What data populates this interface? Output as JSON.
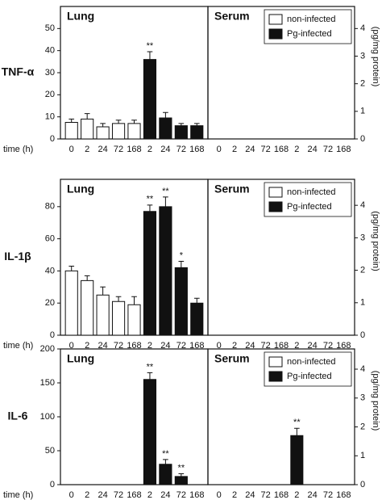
{
  "chart_data": [
    {
      "type": "bar",
      "title": "Lung",
      "row_label": "TNF-α",
      "x_label": "time (h)",
      "categories": [
        "0",
        "2",
        "24",
        "72",
        "168",
        "2",
        "24",
        "72",
        "168"
      ],
      "ylim": [
        0,
        60
      ],
      "yticks": [
        0,
        10,
        20,
        30,
        40,
        50
      ],
      "y_axis": "left",
      "series": [
        {
          "color": "#ffffff",
          "values": [
            7.5,
            9,
            5.5,
            7,
            7,
            null,
            null,
            null,
            null
          ],
          "errors": [
            1.5,
            2.5,
            1.5,
            1.5,
            1.5,
            null,
            null,
            null,
            null
          ],
          "significance": [
            null,
            null,
            null,
            null,
            null,
            null,
            null,
            null,
            null
          ]
        },
        {
          "color": "#111111",
          "values": [
            null,
            null,
            null,
            null,
            null,
            36,
            9.5,
            6,
            6
          ],
          "errors": [
            null,
            null,
            null,
            null,
            null,
            3.5,
            2.5,
            1,
            1
          ],
          "significance": [
            null,
            null,
            null,
            null,
            null,
            "**",
            null,
            null,
            null
          ]
        }
      ]
    },
    {
      "type": "bar",
      "title": "Serum",
      "y_label": "(pg/mg protein)",
      "legend": "upper right",
      "categories": [
        "0",
        "2",
        "24",
        "72",
        "168",
        "2",
        "24",
        "72",
        "168"
      ],
      "ylim": [
        0,
        4.8
      ],
      "yticks": [
        0,
        1,
        2,
        3,
        4
      ],
      "y_axis": "right",
      "series": [
        {
          "name": "non-infected",
          "color": "#ffffff",
          "values": [
            0,
            0,
            0,
            0,
            0,
            null,
            null,
            null,
            null
          ],
          "errors": [
            0,
            0,
            0,
            0,
            0,
            null,
            null,
            null,
            null
          ],
          "significance": [
            null,
            null,
            null,
            null,
            null,
            null,
            null,
            null,
            null
          ]
        },
        {
          "name": "Pg-infected",
          "color": "#111111",
          "values": [
            null,
            null,
            null,
            null,
            null,
            0,
            0,
            0,
            0
          ],
          "errors": [
            null,
            null,
            null,
            null,
            null,
            0,
            0,
            0,
            0
          ],
          "significance": [
            null,
            null,
            null,
            null,
            null,
            null,
            null,
            null,
            null
          ]
        }
      ]
    },
    {
      "type": "bar",
      "title": "Lung",
      "row_label": "IL-1β",
      "x_label": "time (h)",
      "categories": [
        "0",
        "2",
        "24",
        "72",
        "168",
        "2",
        "24",
        "72",
        "168"
      ],
      "ylim": [
        0,
        97
      ],
      "yticks": [
        0,
        20,
        40,
        60,
        80
      ],
      "y_axis": "left",
      "series": [
        {
          "color": "#ffffff",
          "values": [
            40,
            34,
            25,
            21,
            19,
            null,
            null,
            null,
            null
          ],
          "errors": [
            3,
            3,
            5,
            3,
            5,
            null,
            null,
            null,
            null
          ],
          "significance": [
            null,
            null,
            null,
            null,
            null,
            null,
            null,
            null,
            null
          ]
        },
        {
          "color": "#111111",
          "values": [
            null,
            null,
            null,
            null,
            null,
            77,
            80,
            42,
            20
          ],
          "errors": [
            null,
            null,
            null,
            null,
            null,
            4,
            6,
            4,
            3
          ],
          "significance": [
            null,
            null,
            null,
            null,
            null,
            "**",
            "**",
            "*",
            null
          ]
        }
      ]
    },
    {
      "type": "bar",
      "title": "Serum",
      "y_label": "(pg/mg protein)",
      "legend": "upper right",
      "categories": [
        "0",
        "2",
        "24",
        "72",
        "168",
        "2",
        "24",
        "72",
        "168"
      ],
      "ylim": [
        0,
        4.8
      ],
      "yticks": [
        0,
        1,
        2,
        3,
        4
      ],
      "y_axis": "right",
      "series": [
        {
          "name": "non-infected",
          "color": "#ffffff",
          "values": [
            0,
            0,
            0,
            0,
            0,
            null,
            null,
            null,
            null
          ],
          "errors": [
            0,
            0,
            0,
            0,
            0,
            null,
            null,
            null,
            null
          ],
          "significance": [
            null,
            null,
            null,
            null,
            null,
            null,
            null,
            null,
            null
          ]
        },
        {
          "name": "Pg-infected",
          "color": "#111111",
          "values": [
            null,
            null,
            null,
            null,
            null,
            0,
            0,
            0,
            0
          ],
          "errors": [
            null,
            null,
            null,
            null,
            null,
            0,
            0,
            0,
            0
          ],
          "significance": [
            null,
            null,
            null,
            null,
            null,
            null,
            null,
            null,
            null
          ]
        }
      ]
    },
    {
      "type": "bar",
      "title": "Lung",
      "row_label": "IL-6",
      "x_label": "time (h)",
      "categories": [
        "0",
        "2",
        "24",
        "72",
        "168",
        "2",
        "24",
        "72",
        "168"
      ],
      "ylim": [
        0,
        200
      ],
      "yticks": [
        0,
        50,
        100,
        150,
        200
      ],
      "y_axis": "left",
      "series": [
        {
          "color": "#ffffff",
          "values": [
            0,
            0,
            0,
            0,
            0,
            null,
            null,
            null,
            null
          ],
          "errors": [
            0,
            0,
            0,
            0,
            0,
            null,
            null,
            null,
            null
          ],
          "significance": [
            null,
            null,
            null,
            null,
            null,
            null,
            null,
            null,
            null
          ]
        },
        {
          "color": "#111111",
          "values": [
            null,
            null,
            null,
            null,
            null,
            155,
            30,
            12,
            0
          ],
          "errors": [
            null,
            null,
            null,
            null,
            null,
            10,
            7,
            4,
            0
          ],
          "significance": [
            null,
            null,
            null,
            null,
            null,
            "**",
            "**",
            "**",
            null
          ]
        }
      ]
    },
    {
      "type": "bar",
      "title": "Serum",
      "y_label": "(pg/mg protein)",
      "legend": "upper right",
      "categories": [
        "0",
        "2",
        "24",
        "72",
        "168",
        "2",
        "24",
        "72",
        "168"
      ],
      "ylim": [
        0,
        4.7
      ],
      "yticks": [
        0,
        1,
        2,
        3,
        4
      ],
      "y_axis": "right",
      "series": [
        {
          "name": "non-infected",
          "color": "#ffffff",
          "values": [
            0,
            0,
            0,
            0,
            0,
            null,
            null,
            null,
            null
          ],
          "errors": [
            0,
            0,
            0,
            0,
            0,
            null,
            null,
            null,
            null
          ],
          "significance": [
            null,
            null,
            null,
            null,
            null,
            null,
            null,
            null,
            null
          ]
        },
        {
          "name": "Pg-infected",
          "color": "#111111",
          "values": [
            null,
            null,
            null,
            null,
            null,
            1.7,
            0,
            0,
            0
          ],
          "errors": [
            null,
            null,
            null,
            null,
            null,
            0.25,
            0,
            0,
            0
          ],
          "significance": [
            null,
            null,
            null,
            null,
            null,
            "**",
            null,
            null,
            null
          ]
        }
      ]
    }
  ]
}
